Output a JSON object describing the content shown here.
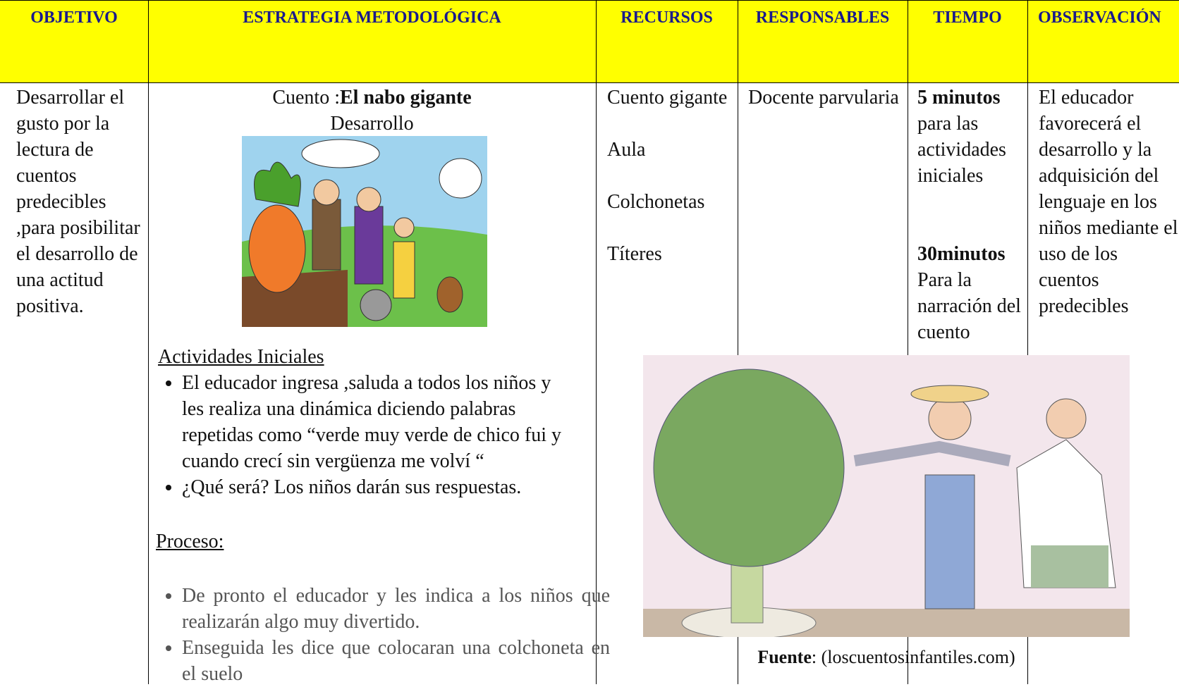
{
  "header": {
    "columns": [
      "OBJETIVO",
      "ESTRATEGIA METODOLÓGICA",
      "RECURSOS",
      "RESPONSABLES",
      "TIEMPO",
      "OBSERVACIÓN"
    ]
  },
  "row": {
    "objetivo": "Desarrollar el gusto por la lectura de cuentos predecibles ,para posibilitar el desarrollo de una actitud positiva.",
    "estrategia": {
      "title_prefix": "Cuento :",
      "title": "El nabo gigante",
      "subtitle": "Desarrollo",
      "actividades_heading": "Actividades Iniciales",
      "actividades": [
        "El educador ingresa ,saluda  a todos los niños y les realiza una dinámica diciendo palabras repetidas como “verde muy verde de chico fui y cuando crecí sin vergüenza me volví “",
        "¿Qué será? Los niños darán sus respuestas."
      ],
      "proceso_heading": "Proceso:",
      "proceso": [
        "De pronto el educador y les indica a los niños que realizarán algo muy divertido.",
        "Enseguida les dice que colocaran una colchoneta en el suelo"
      ]
    },
    "recursos": [
      "Cuento gigante",
      "Aula",
      "Colchonetas",
      "Títeres"
    ],
    "responsables": "Docente parvularia",
    "tiempo": [
      {
        "duration": "5 minutos",
        "description": "para las actividades iniciales"
      },
      {
        "duration": "30minutos",
        "description": "Para la narración del cuento"
      }
    ],
    "observacion": "El educador favorecerá el desarrollo y la adquisición del lenguaje en los niños mediante el uso de los cuentos predecibles"
  },
  "figure": {
    "source_label": "Fuente",
    "source_text": ": (loscuentosinfantiles.com)"
  }
}
